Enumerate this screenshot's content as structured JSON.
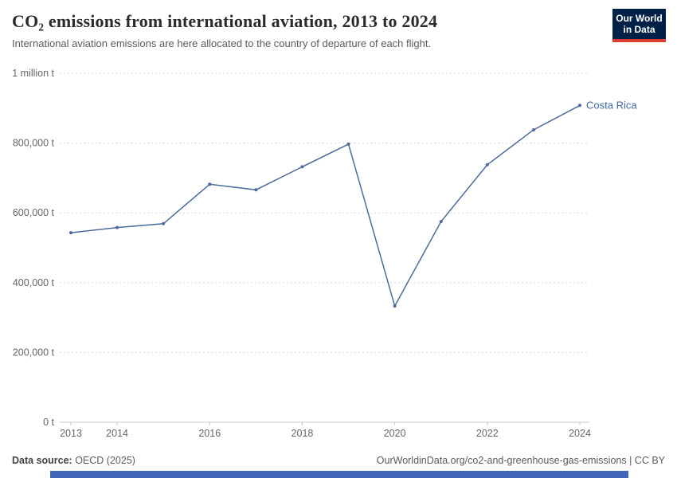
{
  "header": {
    "title": "CO₂ emissions from international aviation, 2013 to 2024",
    "subtitle": "International aviation emissions are here allocated to the country of departure of each flight.",
    "logo": {
      "line1": "Our World",
      "line2": "in Data"
    }
  },
  "chart_data": {
    "type": "line",
    "title": "CO₂ emissions from international aviation, 2013 to 2024",
    "x": [
      2013,
      2014,
      2015,
      2016,
      2017,
      2018,
      2019,
      2020,
      2021,
      2022,
      2023,
      2024
    ],
    "series": [
      {
        "name": "Costa Rica",
        "color": "#4C6A9C",
        "values": [
          543000,
          558000,
          569000,
          682000,
          666000,
          732000,
          797000,
          333000,
          575000,
          738000,
          838000,
          908000
        ]
      }
    ],
    "xlabel": "",
    "ylabel": "",
    "ylim": [
      0,
      1000000
    ],
    "yticks": [
      {
        "value": 0,
        "label": "0 t"
      },
      {
        "value": 200000,
        "label": "200,000 t"
      },
      {
        "value": 400000,
        "label": "400,000 t"
      },
      {
        "value": 600000,
        "label": "600,000 t"
      },
      {
        "value": 800000,
        "label": "800,000 t"
      },
      {
        "value": 1000000,
        "label": "1 million t"
      }
    ],
    "xticks": [
      2013,
      2014,
      2016,
      2018,
      2020,
      2022,
      2024
    ],
    "grid": "horizontal-dashed",
    "legend_position": "end-of-line"
  },
  "colors": {
    "logo_bg": "#002147",
    "logo_accent": "#dc3e32",
    "line": "#4C6A9C",
    "label": "#3C6AA5",
    "grid": "#dcdcdc",
    "axis": "#c8c8c8",
    "text": "#666666",
    "bottom_bar": "#4066b8"
  },
  "footer": {
    "source_label": "Data source:",
    "source_value": " OECD (2025)",
    "link": "OurWorldinData.org/co2-and-greenhouse-gas-emissions | CC BY"
  }
}
